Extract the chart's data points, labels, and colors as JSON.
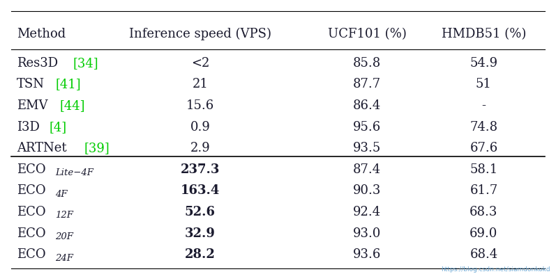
{
  "headers": [
    "Method",
    "Inference speed (VPS)",
    "UCF101 (%)",
    "HMDB51 (%)"
  ],
  "rows": [
    {
      "method": "Res3D",
      "ref": "[34]",
      "speed": "<2",
      "ucf": "85.8",
      "hmdb": "54.9",
      "bold": false,
      "sep": false,
      "eco": false
    },
    {
      "method": "TSN",
      "ref": "[41]",
      "speed": "21",
      "ucf": "87.7",
      "hmdb": "51",
      "bold": false,
      "sep": false,
      "eco": false
    },
    {
      "method": "EMV",
      "ref": "[44]",
      "speed": "15.6",
      "ucf": "86.4",
      "hmdb": "-",
      "bold": false,
      "sep": false,
      "eco": false
    },
    {
      "method": "I3D",
      "ref": "[4]",
      "speed": "0.9",
      "ucf": "95.6",
      "hmdb": "74.8",
      "bold": false,
      "sep": false,
      "eco": false
    },
    {
      "method": "ARTNet",
      "ref": "[39]",
      "speed": "2.9",
      "ucf": "93.5",
      "hmdb": "67.6",
      "bold": false,
      "sep": false,
      "eco": false
    },
    {
      "method": "ECO",
      "sub": "Lite−4F",
      "speed": "237.3",
      "ucf": "87.4",
      "hmdb": "58.1",
      "bold": true,
      "sep": true,
      "eco": true
    },
    {
      "method": "ECO",
      "sub": "4F",
      "speed": "163.4",
      "ucf": "90.3",
      "hmdb": "61.7",
      "bold": true,
      "sep": false,
      "eco": true
    },
    {
      "method": "ECO",
      "sub": "12F",
      "speed": "52.6",
      "ucf": "92.4",
      "hmdb": "68.3",
      "bold": true,
      "sep": false,
      "eco": true
    },
    {
      "method": "ECO",
      "sub": "20F",
      "speed": "32.9",
      "ucf": "93.0",
      "hmdb": "69.0",
      "bold": true,
      "sep": false,
      "eco": true
    },
    {
      "method": "ECO",
      "sub": "24F",
      "speed": "28.2",
      "ucf": "93.6",
      "hmdb": "68.4",
      "bold": true,
      "sep": false,
      "eco": true
    }
  ],
  "bg_color": "#ffffff",
  "text_color": "#1a1a2e",
  "green_color": "#00cc00",
  "watermark": "https://blog.csdn.net/siamdonkokd",
  "watermark_color": "#5599cc",
  "figsize": [
    7.97,
    3.94
  ],
  "dpi": 100,
  "main_fontsize": 13,
  "sub_fontsize": 9.5,
  "header_fontsize": 13
}
